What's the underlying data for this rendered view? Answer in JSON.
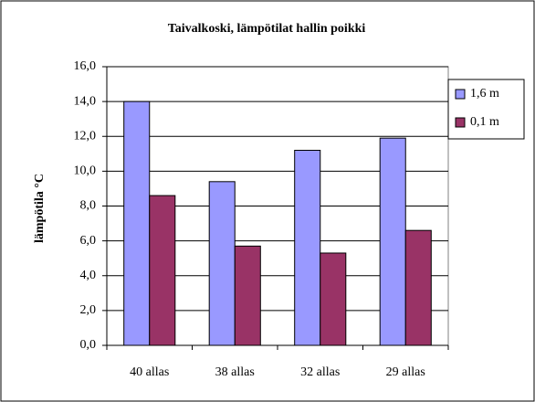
{
  "chart_data": {
    "type": "bar",
    "title": "Taivalkoski,  lämpötilat hallin poikki",
    "y_label": "lämpötila °C",
    "categories": [
      "40 allas",
      "38 allas",
      "32 allas",
      "29 allas"
    ],
    "series": [
      {
        "name": "1,6 m",
        "color": "#9999ff",
        "values": [
          14.0,
          9.4,
          11.2,
          11.9
        ]
      },
      {
        "name": "0,1 m",
        "color": "#993366",
        "values": [
          8.6,
          5.7,
          5.3,
          6.6
        ]
      }
    ],
    "ylim": [
      0,
      16
    ],
    "yticks": [
      {
        "value": 0,
        "label": "0,0"
      },
      {
        "value": 2,
        "label": "2,0"
      },
      {
        "value": 4,
        "label": "4,0"
      },
      {
        "value": 6,
        "label": "6,0"
      },
      {
        "value": 8,
        "label": "8,0"
      },
      {
        "value": 10,
        "label": "10,0"
      },
      {
        "value": 12,
        "label": "12,0"
      },
      {
        "value": 14,
        "label": "14,0"
      },
      {
        "value": 16,
        "label": "16,0"
      }
    ],
    "grid": true,
    "legend": "right"
  }
}
